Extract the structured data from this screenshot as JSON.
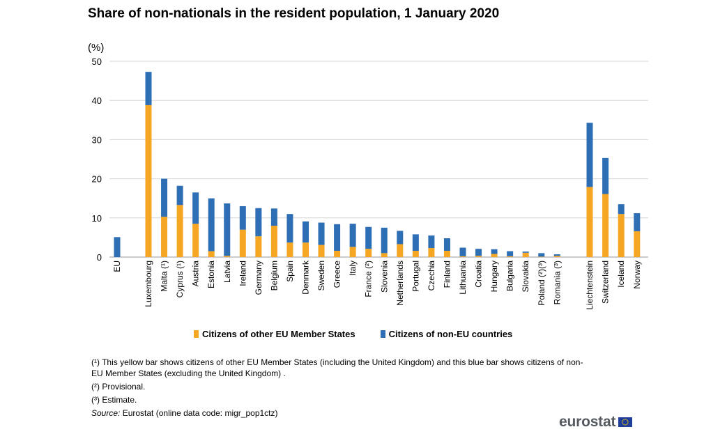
{
  "title": "Share of non-nationals in the resident population, 1 January 2020",
  "unit_label": "(%)",
  "colors": {
    "eu": "#f5a623",
    "non_eu": "#2e6eb5",
    "grid": "#d4d4d4"
  },
  "chart_data": {
    "type": "bar",
    "stacked": true,
    "ylim": [
      0,
      50
    ],
    "yticks": [
      0,
      10,
      20,
      30,
      40,
      50
    ],
    "grid": true,
    "legend_position": "bottom",
    "categories": [
      "EU",
      "Luxembourg",
      "Malta (¹)",
      "Cyprus (¹)",
      "Austria",
      "Estonia",
      "Latvia",
      "Ireland",
      "Germany",
      "Belgium",
      "Spain",
      "Denmark",
      "Sweden",
      "Greece",
      "Italy",
      "France (²)",
      "Slovenia",
      "Netherlands",
      "Portugal",
      "Czechia",
      "Finland",
      "Lithuania",
      "Croatia",
      "Hungary",
      "Bulgaria",
      "Slovakia",
      "Poland (²)(³)",
      "Romania (³)",
      "Liechtenstein",
      "Switzerland",
      "Iceland",
      "Norway"
    ],
    "series": [
      {
        "name": "Citizens of other EU Member States",
        "values": [
          0,
          38.8,
          10.3,
          13.3,
          8.5,
          1.5,
          0.3,
          7.0,
          5.3,
          8.0,
          3.7,
          3.7,
          3.1,
          1.6,
          2.6,
          2.1,
          1.0,
          3.3,
          1.6,
          2.3,
          1.6,
          0.2,
          0.3,
          0.8,
          0.2,
          1.1,
          0.1,
          0.3,
          17.9,
          16.1,
          11.0,
          6.6
        ]
      },
      {
        "name": "Citizens of non-EU countries",
        "values": [
          5.1,
          8.5,
          9.7,
          4.9,
          8.0,
          13.5,
          13.4,
          6.0,
          7.2,
          4.4,
          7.3,
          5.4,
          5.7,
          6.8,
          5.9,
          5.6,
          6.5,
          3.4,
          4.2,
          3.2,
          3.2,
          2.2,
          1.8,
          1.2,
          1.3,
          0.3,
          0.9,
          0.4,
          16.4,
          9.2,
          2.5,
          4.6
        ]
      }
    ]
  },
  "notes": {
    "n1": "(¹) This yellow bar shows citizens of other EU Member States (including the United Kingdom) and this blue bar shows citizens of non-EU Member States (excluding the United Kingdom) .",
    "n2": "(²) Provisional.",
    "n3": "(³) Estimate.",
    "source_label": "Source:",
    "source_text": "Eurostat (online data code: migr_pop1ctz)"
  },
  "logo_text": "eurostat"
}
